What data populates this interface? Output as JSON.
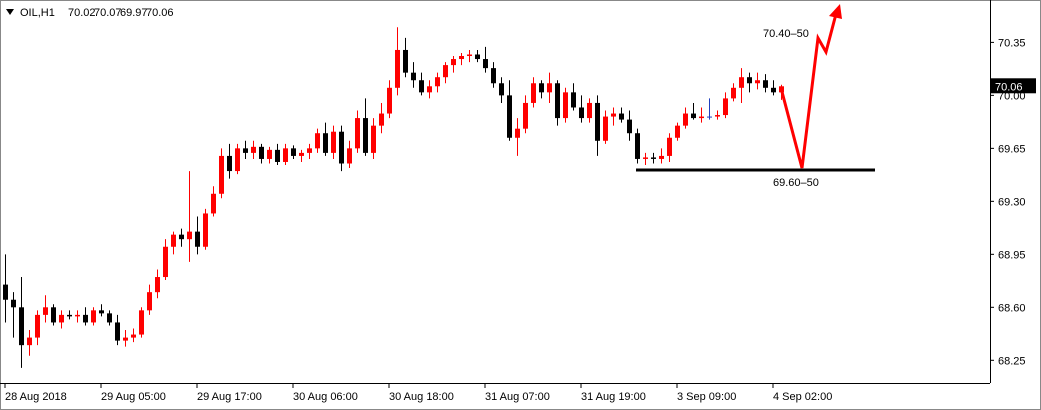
{
  "chart_data": {
    "type": "candlestick",
    "title": "OIL,H1",
    "up_color": "#ff0000",
    "down_color": "#000000",
    "flat_color": "#1f3fbf",
    "ylim": [
      68.1,
      70.63
    ],
    "yticks": [
      68.25,
      {
        "value": 68.6,
        "label": "68.60"
      },
      68.95,
      {
        "value": 69.3,
        "label": "69.30"
      },
      69.65,
      {
        "value": 70.0,
        "label": "70.00"
      },
      70.35
    ],
    "xticks": [
      {
        "value": 0,
        "label": "28 Aug 2018"
      },
      {
        "value": 12,
        "label": "29 Aug 05:00"
      },
      {
        "value": 24,
        "label": "29 Aug 17:00"
      },
      {
        "value": 36,
        "label": "30 Aug 06:00"
      },
      {
        "value": 48,
        "label": "30 Aug 18:00"
      },
      {
        "value": 60,
        "label": "31 Aug 07:00"
      },
      {
        "value": 72,
        "label": "31 Aug 19:00"
      },
      {
        "value": 84,
        "label": "3 Sep 09:00"
      },
      {
        "value": 96,
        "label": "4 Sep 02:00"
      }
    ],
    "annotations": [
      "70.40–50",
      "69.60–50"
    ],
    "ohlc": [
      [
        68.75,
        68.95,
        68.5,
        68.65
      ],
      [
        68.65,
        68.7,
        68.4,
        68.6
      ],
      [
        68.6,
        68.8,
        68.2,
        68.35
      ],
      [
        68.35,
        68.45,
        68.28,
        68.4
      ],
      [
        68.4,
        68.58,
        68.35,
        68.55
      ],
      [
        68.55,
        68.68,
        68.5,
        68.6
      ],
      [
        68.6,
        68.62,
        68.48,
        68.5
      ],
      [
        68.5,
        68.58,
        68.46,
        68.55
      ],
      [
        68.55,
        68.58,
        68.52,
        68.54
      ],
      [
        68.54,
        68.58,
        68.5,
        68.55
      ],
      [
        68.55,
        68.6,
        68.48,
        68.5
      ],
      [
        68.5,
        68.6,
        68.48,
        68.58
      ],
      [
        68.58,
        68.62,
        68.54,
        68.56
      ],
      [
        68.56,
        68.58,
        68.48,
        68.5
      ],
      [
        68.5,
        68.55,
        68.35,
        68.38
      ],
      [
        68.38,
        68.45,
        68.34,
        68.4
      ],
      [
        68.4,
        68.46,
        68.37,
        68.42
      ],
      [
        68.42,
        68.6,
        68.4,
        68.58
      ],
      [
        68.58,
        68.75,
        68.55,
        68.7
      ],
      [
        68.7,
        68.85,
        68.66,
        68.8
      ],
      [
        68.8,
        69.05,
        68.78,
        69.0
      ],
      [
        69.0,
        69.1,
        68.95,
        69.08
      ],
      [
        69.08,
        69.12,
        69.0,
        69.05
      ],
      [
        69.05,
        69.5,
        68.9,
        69.1
      ],
      [
        69.1,
        69.2,
        68.95,
        69.0
      ],
      [
        69.0,
        69.25,
        68.98,
        69.22
      ],
      [
        69.22,
        69.4,
        69.2,
        69.35
      ],
      [
        69.35,
        69.65,
        69.32,
        69.6
      ],
      [
        69.6,
        69.68,
        69.45,
        69.5
      ],
      [
        69.5,
        69.68,
        69.48,
        69.65
      ],
      [
        69.65,
        69.7,
        69.58,
        69.62
      ],
      [
        69.62,
        69.7,
        69.58,
        69.66
      ],
      [
        69.66,
        69.68,
        69.55,
        69.58
      ],
      [
        69.58,
        69.66,
        69.55,
        69.64
      ],
      [
        69.64,
        69.68,
        69.54,
        69.56
      ],
      [
        69.56,
        69.68,
        69.54,
        69.65
      ],
      [
        69.65,
        69.67,
        69.58,
        69.6
      ],
      [
        69.6,
        69.64,
        69.56,
        69.62
      ],
      [
        69.62,
        69.68,
        69.58,
        69.65
      ],
      [
        69.65,
        69.78,
        69.62,
        69.75
      ],
      [
        69.75,
        69.82,
        69.6,
        69.62
      ],
      [
        69.62,
        69.8,
        69.58,
        69.76
      ],
      [
        69.76,
        69.8,
        69.5,
        69.55
      ],
      [
        69.55,
        69.7,
        69.52,
        69.65
      ],
      [
        69.65,
        69.9,
        69.62,
        69.85
      ],
      [
        69.85,
        69.98,
        69.6,
        69.62
      ],
      [
        69.62,
        69.85,
        69.58,
        69.8
      ],
      [
        69.8,
        69.95,
        69.75,
        69.88
      ],
      [
        69.88,
        70.1,
        69.85,
        70.05
      ],
      [
        70.05,
        70.45,
        70.0,
        70.3
      ],
      [
        70.3,
        70.38,
        70.12,
        70.15
      ],
      [
        70.15,
        70.22,
        70.05,
        70.1
      ],
      [
        70.1,
        70.15,
        70.0,
        70.02
      ],
      [
        70.02,
        70.1,
        69.98,
        70.06
      ],
      [
        70.06,
        70.15,
        70.02,
        70.12
      ],
      [
        70.12,
        70.22,
        70.08,
        70.2
      ],
      [
        70.2,
        70.26,
        70.15,
        70.24
      ],
      [
        70.24,
        70.28,
        70.2,
        70.26
      ],
      [
        70.26,
        70.3,
        70.22,
        70.27
      ],
      [
        70.27,
        70.3,
        70.22,
        70.24
      ],
      [
        70.24,
        70.32,
        70.15,
        70.18
      ],
      [
        70.18,
        70.22,
        70.05,
        70.08
      ],
      [
        70.08,
        70.12,
        69.95,
        70.0
      ],
      [
        70.0,
        70.1,
        69.7,
        69.72
      ],
      [
        69.72,
        69.85,
        69.6,
        69.78
      ],
      [
        69.78,
        70.0,
        69.75,
        69.95
      ],
      [
        69.95,
        70.12,
        69.92,
        70.08
      ],
      [
        70.08,
        70.1,
        69.98,
        70.02
      ],
      [
        70.02,
        70.15,
        69.95,
        70.08
      ],
      [
        70.08,
        70.1,
        69.8,
        69.85
      ],
      [
        69.85,
        70.05,
        69.82,
        70.02
      ],
      [
        70.02,
        70.08,
        69.9,
        69.92
      ],
      [
        69.92,
        70.0,
        69.82,
        69.85
      ],
      [
        69.85,
        69.98,
        69.82,
        69.95
      ],
      [
        69.95,
        70.0,
        69.6,
        69.7
      ],
      [
        69.7,
        69.9,
        69.68,
        69.86
      ],
      [
        69.86,
        69.92,
        69.8,
        69.88
      ],
      [
        69.88,
        69.92,
        69.82,
        69.84
      ],
      [
        69.84,
        69.9,
        69.7,
        69.75
      ],
      [
        69.75,
        69.78,
        69.55,
        69.58
      ],
      [
        69.58,
        69.62,
        69.54,
        69.59
      ],
      [
        69.59,
        69.62,
        69.55,
        69.58
      ],
      [
        69.58,
        69.65,
        69.55,
        69.6
      ],
      [
        69.6,
        69.75,
        69.56,
        69.72
      ],
      [
        69.72,
        69.82,
        69.7,
        69.8
      ],
      [
        69.8,
        69.92,
        69.78,
        69.88
      ],
      [
        69.88,
        69.95,
        69.84,
        69.85
      ],
      [
        69.85,
        69.92,
        69.82,
        69.86
      ],
      [
        69.86,
        69.98,
        69.84,
        69.86
      ],
      [
        69.86,
        69.9,
        69.84,
        69.87
      ],
      [
        69.87,
        70.02,
        69.85,
        69.98
      ],
      [
        69.98,
        70.08,
        69.96,
        70.05
      ],
      [
        70.05,
        70.18,
        69.95,
        70.12
      ],
      [
        70.12,
        70.15,
        70.02,
        70.08
      ],
      [
        70.08,
        70.15,
        70.04,
        70.1
      ],
      [
        70.1,
        70.14,
        70.02,
        70.05
      ],
      [
        70.05,
        70.1,
        70.0,
        70.02
      ],
      [
        70.02,
        70.07,
        69.97,
        70.06
      ]
    ]
  }
}
